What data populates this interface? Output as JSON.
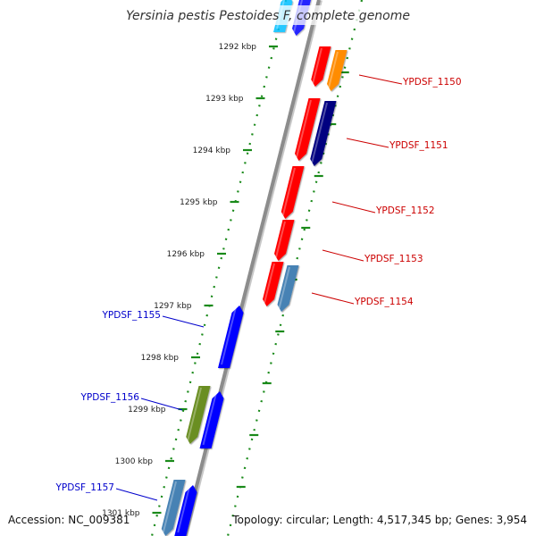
{
  "title": "Yersinia pestis Pestoides F, complete genome",
  "accession": "Accession: NC_009381",
  "topology": "Topology: circular; Length: 4,517,345 bp; Genes: 3,954",
  "colors": {
    "backbone": "#8c8c8c",
    "dots": "#1a8a1a",
    "label_right": "#cc0000",
    "label_left": "#0000cc",
    "gene_red": "#ff0000",
    "gene_blue": "#0000ff",
    "gene_navy": "#000080",
    "gene_orange": "#ff8c00",
    "gene_steel": "#4682b4",
    "gene_olive": "#6b8e23",
    "gene_sky": "#00bfff"
  },
  "kbp_ticks": [
    "1292 kbp",
    "1293 kbp",
    "1294 kbp",
    "1295 kbp",
    "1296 kbp",
    "1297 kbp",
    "1298 kbp",
    "1299 kbp",
    "1300 kbp",
    "1301 kbp"
  ],
  "gene_labels": [
    {
      "text": "YPDSF_1150",
      "side": "right"
    },
    {
      "text": "YPDSF_1151",
      "side": "right"
    },
    {
      "text": "YPDSF_1152",
      "side": "right"
    },
    {
      "text": "YPDSF_1153",
      "side": "right"
    },
    {
      "text": "YPDSF_1154",
      "side": "right"
    },
    {
      "text": "YPDSF_1155",
      "side": "left"
    },
    {
      "text": "YPDSF_1156",
      "side": "left"
    },
    {
      "text": "YPDSF_1157",
      "side": "left"
    }
  ]
}
